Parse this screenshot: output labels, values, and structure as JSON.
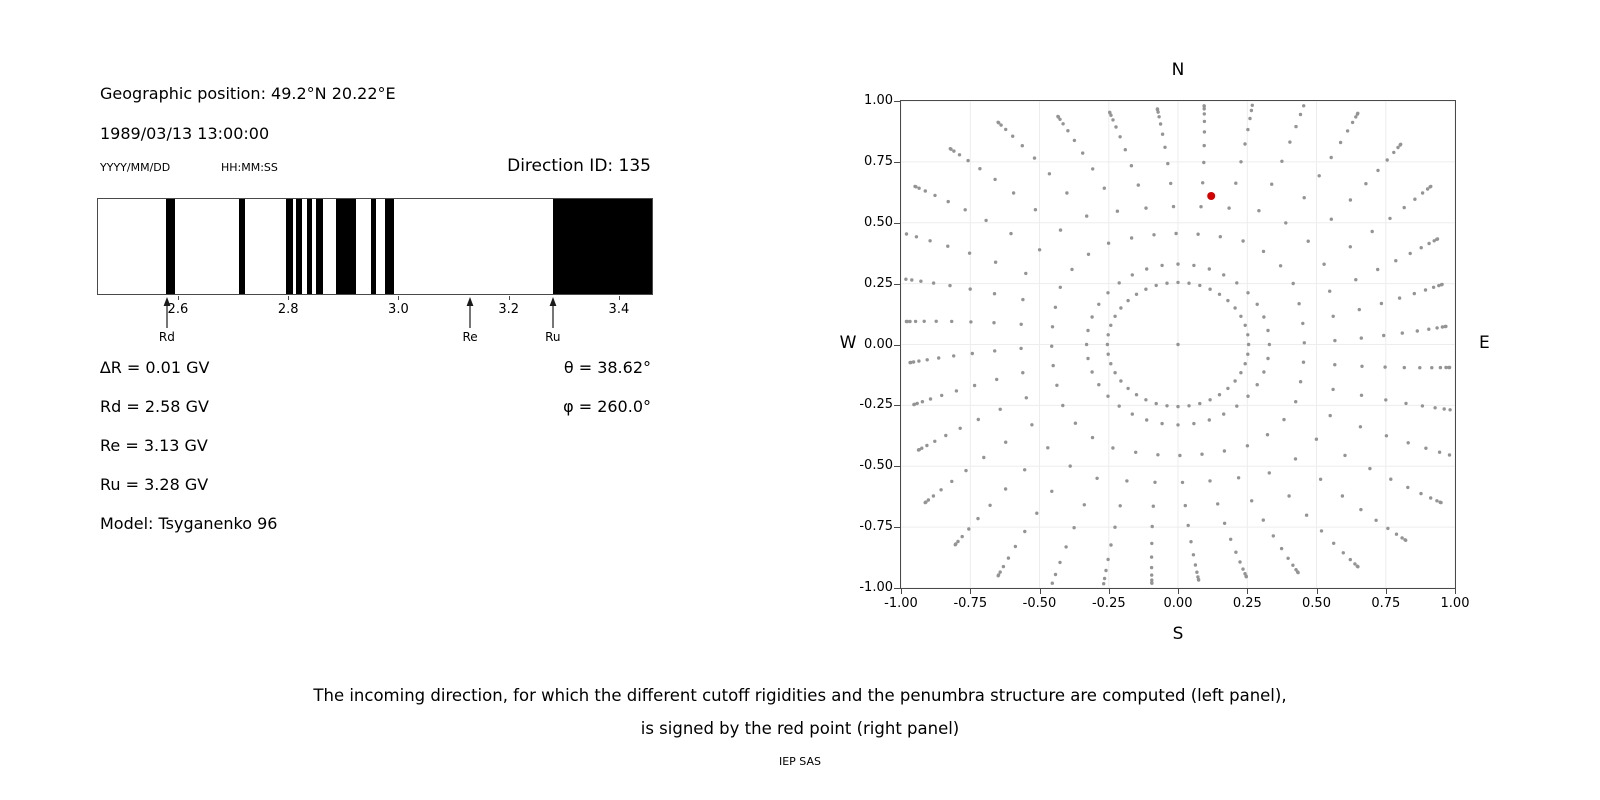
{
  "left_panel": {
    "geo_position": "Geographic position: 49.2°N 20.22°E",
    "datetime": "1989/03/13 13:00:00",
    "date_format_hint": "YYYY/MM/DD",
    "time_format_hint": "HH:MM:SS",
    "direction_id": "Direction ID: 135",
    "info_left": [
      "∆R = 0.01 GV",
      "Rd = 2.58 GV",
      "Re = 3.13 GV",
      "Ru = 3.28 GV",
      "Model: Tsyganenko 96"
    ],
    "info_right": [
      "θ = 38.62°",
      "φ = 260.0°"
    ]
  },
  "caption": {
    "line1": "The incoming direction, for which the different cutoff rigidities and the penumbra structure are computed (left panel),",
    "line2": "is signed by the red point (right panel)"
  },
  "footer": "IEP SAS",
  "chart_data": [
    {
      "type": "bar",
      "name": "penumbra-structure",
      "description": "Cutoff rigidity penumbra: black bands mark allowed rigidity intervals in GV",
      "xlim": [
        2.455,
        3.46
      ],
      "xticks": [
        2.6,
        2.8,
        3.0,
        3.2,
        3.4
      ],
      "xtick_labels": [
        "2.6",
        "2.8",
        "3.0",
        "3.2",
        "3.4"
      ],
      "bands_gv": [
        [
          2.578,
          2.594
        ],
        [
          2.71,
          2.722
        ],
        [
          2.796,
          2.808
        ],
        [
          2.815,
          2.826
        ],
        [
          2.834,
          2.844
        ],
        [
          2.851,
          2.864
        ],
        [
          2.886,
          2.924
        ],
        [
          2.95,
          2.96
        ],
        [
          2.975,
          2.993
        ],
        [
          3.281,
          3.46
        ]
      ],
      "markers": [
        {
          "label": "Rd",
          "x": 2.58
        },
        {
          "label": "Re",
          "x": 3.13
        },
        {
          "label": "Ru",
          "x": 3.28
        }
      ],
      "band_color": "#000000"
    },
    {
      "type": "scatter",
      "name": "asymptotic-directions",
      "description": "Grid of computed incoming directions (gray dots); selected direction ID 135 marked by red point",
      "xlim": [
        -1,
        1
      ],
      "ylim": [
        -1,
        1
      ],
      "ticks": [
        -1,
        -0.75,
        -0.5,
        -0.25,
        0,
        0.25,
        0.5,
        0.75,
        1
      ],
      "tick_labels": [
        "-1.00",
        "-0.75",
        "-0.50",
        "-0.25",
        "0.00",
        "0.25",
        "0.50",
        "0.75",
        "1.00"
      ],
      "direction_labels": {
        "top": "N",
        "bottom": "S",
        "left": "W",
        "right": "E"
      },
      "grid": true,
      "grid_color": "#ededed",
      "dot_color": "#949494",
      "dot_radius_px": 1.7,
      "spokes": {
        "count": 36,
        "angle_step_deg": 10,
        "r_start": 0.33,
        "dots_per_spoke": 12,
        "edge_r": 0.97,
        "max_r": 1.15,
        "bunching_exponent": 2.3,
        "curvature_rad": 0.12
      },
      "inner_ring": {
        "radius": 0.255,
        "count": 40
      },
      "center_dot": [
        0,
        0
      ],
      "red_point": {
        "x": 0.12,
        "y": 0.61,
        "color": "#d40000",
        "radius_px": 4
      }
    }
  ]
}
